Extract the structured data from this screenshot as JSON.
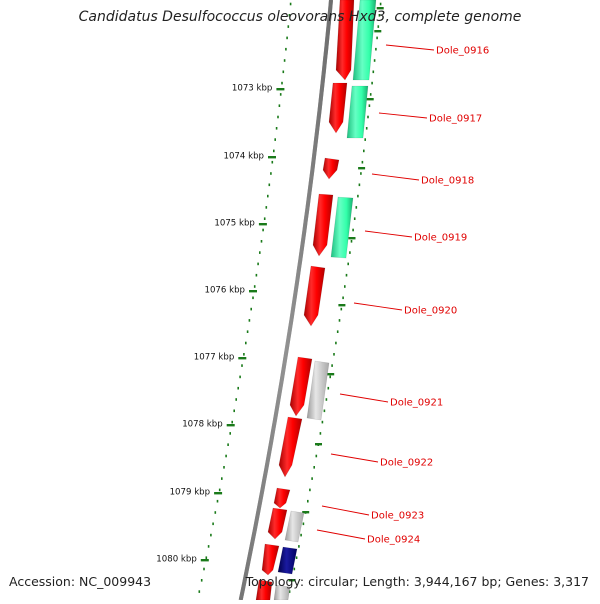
{
  "title": "Candidatus Desulfococcus oleovorans Hxd3, complete genome",
  "footer": {
    "accession": "Accession: NC_009943",
    "summary": "Topology: circular; Length: 3,944,167 bp; Genes: 3,317"
  },
  "colors": {
    "gene_red": "#ff0000",
    "gene_green": "#33ffaa",
    "gene_gray": "#c8c8c8",
    "gene_navy": "#000080",
    "tick_green": "#1a7a1a",
    "backbone": "#808080",
    "label_red": "#e00000"
  },
  "kbp_ticks": [
    "1073 kbp",
    "1074 kbp",
    "1075 kbp",
    "1076 kbp",
    "1077 kbp",
    "1078 kbp",
    "1079 kbp",
    "1080 kbp"
  ],
  "genes": [
    "Dole_0916",
    "Dole_0917",
    "Dole_0918",
    "Dole_0919",
    "Dole_0920",
    "Dole_0921",
    "Dole_0922",
    "Dole_0923",
    "Dole_0924"
  ]
}
